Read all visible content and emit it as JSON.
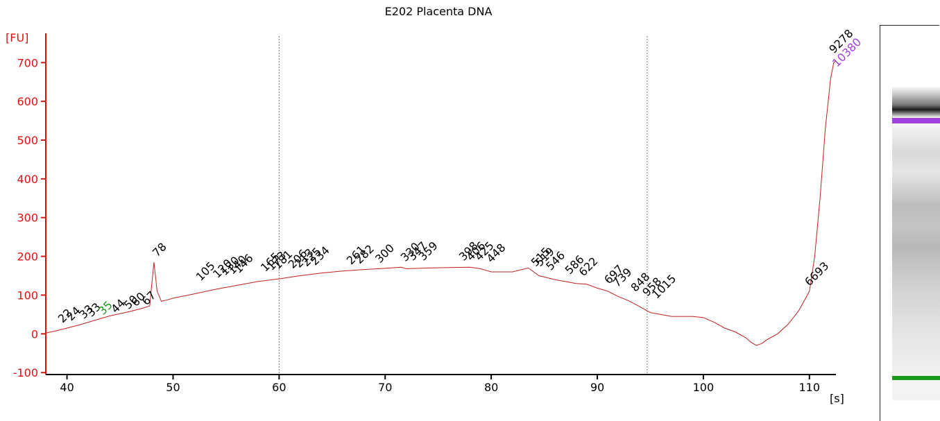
{
  "chart_data": {
    "type": "line",
    "title": "E202 Placenta DNA",
    "ylabel": "[FU]",
    "xlabel": "[s]",
    "xlim": [
      38,
      112.5
    ],
    "ylim": [
      -105,
      790
    ],
    "x_ticks": [
      40,
      50,
      60,
      70,
      80,
      90,
      100,
      110
    ],
    "y_ticks": [
      -100,
      0,
      100,
      200,
      300,
      400,
      500,
      600,
      700
    ],
    "vertical_markers": [
      60,
      94.7
    ],
    "colors": {
      "axis": "#e01010",
      "trace": "#c02020",
      "lower_marker": "#1a9a1a",
      "upper_marker": "#a040e0",
      "text": "#000000"
    },
    "series": [
      {
        "x": [
          38,
          39,
          40,
          41,
          42,
          43,
          44,
          45,
          46,
          47,
          47.8,
          48.2,
          48.5,
          48.9,
          49.5,
          50,
          52,
          54,
          56,
          58,
          60,
          62,
          64,
          66,
          68,
          70,
          71.5,
          72,
          74,
          76,
          78,
          79,
          80,
          82,
          83.5,
          84.5,
          86,
          88,
          89,
          90,
          91,
          92,
          93,
          94,
          95,
          97,
          99,
          100,
          101,
          102,
          103,
          104,
          104.5,
          105,
          105.5,
          106,
          107,
          108,
          109,
          110,
          110.5,
          111,
          111.5,
          112,
          112.3,
          112.5
        ],
        "y": [
          2,
          8,
          15,
          22,
          30,
          38,
          46,
          52,
          58,
          65,
          72,
          185,
          110,
          84,
          88,
          92,
          103,
          115,
          125,
          135,
          142,
          150,
          157,
          162,
          166,
          169,
          172,
          168,
          170,
          171,
          172,
          168,
          160,
          160,
          170,
          150,
          140,
          130,
          128,
          118,
          110,
          96,
          85,
          70,
          55,
          45,
          45,
          42,
          30,
          15,
          5,
          -10,
          -22,
          -30,
          -25,
          -15,
          0,
          25,
          60,
          110,
          200,
          350,
          530,
          660,
          700,
          705
        ]
      }
    ],
    "peak_labels": [
      {
        "text": "22",
        "x": 39.6,
        "y": 20,
        "color": "#000000"
      },
      {
        "text": "24",
        "x": 40.4,
        "y": 25,
        "color": "#000000"
      },
      {
        "text": "33",
        "x": 41.6,
        "y": 30,
        "color": "#000000"
      },
      {
        "text": "33",
        "x": 42.3,
        "y": 35,
        "color": "#000000"
      },
      {
        "text": "35",
        "x": 43.4,
        "y": 40,
        "color": "#1a9a1a"
      },
      {
        "text": "44",
        "x": 44.6,
        "y": 45,
        "color": "#000000"
      },
      {
        "text": "50",
        "x": 45.8,
        "y": 55,
        "color": "#000000"
      },
      {
        "text": "60",
        "x": 46.5,
        "y": 62,
        "color": "#000000"
      },
      {
        "text": "67",
        "x": 47.5,
        "y": 65,
        "color": "#000000"
      },
      {
        "text": "78",
        "x": 48.5,
        "y": 190,
        "color": "#000000"
      },
      {
        "text": "105",
        "x": 52.6,
        "y": 128,
        "color": "#000000"
      },
      {
        "text": "120",
        "x": 54.2,
        "y": 135,
        "color": "#000000"
      },
      {
        "text": "130",
        "x": 54.9,
        "y": 142,
        "color": "#000000"
      },
      {
        "text": "140",
        "x": 55.6,
        "y": 145,
        "color": "#000000"
      },
      {
        "text": "146",
        "x": 56.2,
        "y": 148,
        "color": "#000000"
      },
      {
        "text": "165",
        "x": 58.7,
        "y": 152,
        "color": "#000000"
      },
      {
        "text": "173",
        "x": 59.3,
        "y": 155,
        "color": "#000000"
      },
      {
        "text": "181",
        "x": 59.9,
        "y": 158,
        "color": "#000000"
      },
      {
        "text": "206",
        "x": 61.3,
        "y": 160,
        "color": "#000000"
      },
      {
        "text": "213",
        "x": 61.9,
        "y": 162,
        "color": "#000000"
      },
      {
        "text": "225",
        "x": 62.6,
        "y": 165,
        "color": "#000000"
      },
      {
        "text": "234",
        "x": 63.4,
        "y": 168,
        "color": "#000000"
      },
      {
        "text": "261",
        "x": 66.8,
        "y": 170,
        "color": "#000000"
      },
      {
        "text": "282",
        "x": 67.6,
        "y": 172,
        "color": "#000000"
      },
      {
        "text": "300",
        "x": 69.5,
        "y": 174,
        "color": "#000000"
      },
      {
        "text": "330",
        "x": 71.9,
        "y": 178,
        "color": "#000000"
      },
      {
        "text": "347",
        "x": 72.6,
        "y": 180,
        "color": "#000000"
      },
      {
        "text": "359",
        "x": 73.6,
        "y": 180,
        "color": "#000000"
      },
      {
        "text": "398",
        "x": 77.4,
        "y": 180,
        "color": "#000000"
      },
      {
        "text": "406",
        "x": 78.1,
        "y": 180,
        "color": "#000000"
      },
      {
        "text": "425",
        "x": 78.9,
        "y": 180,
        "color": "#000000"
      },
      {
        "text": "448",
        "x": 80.0,
        "y": 175,
        "color": "#000000"
      },
      {
        "text": "515",
        "x": 84.2,
        "y": 165,
        "color": "#000000"
      },
      {
        "text": "519",
        "x": 84.6,
        "y": 165,
        "color": "#000000"
      },
      {
        "text": "546",
        "x": 85.6,
        "y": 155,
        "color": "#000000"
      },
      {
        "text": "586",
        "x": 87.4,
        "y": 145,
        "color": "#000000"
      },
      {
        "text": "622",
        "x": 88.7,
        "y": 140,
        "color": "#000000"
      },
      {
        "text": "697",
        "x": 91.1,
        "y": 120,
        "color": "#000000"
      },
      {
        "text": "739",
        "x": 91.9,
        "y": 112,
        "color": "#000000"
      },
      {
        "text": "848",
        "x": 93.6,
        "y": 100,
        "color": "#000000"
      },
      {
        "text": "958",
        "x": 94.7,
        "y": 88,
        "color": "#000000"
      },
      {
        "text": "1015",
        "x": 95.6,
        "y": 82,
        "color": "#000000"
      },
      {
        "text": "6693",
        "x": 110.0,
        "y": 115,
        "color": "#000000"
      },
      {
        "text": "9278",
        "x": 112.3,
        "y": 715,
        "color": "#000000"
      },
      {
        "text": "10380",
        "x": 112.6,
        "y": 680,
        "color": "#a040e0"
      }
    ]
  },
  "gel": {
    "upper_band_color": "#a040e0",
    "lower_band_color": "#1a9a1a"
  }
}
